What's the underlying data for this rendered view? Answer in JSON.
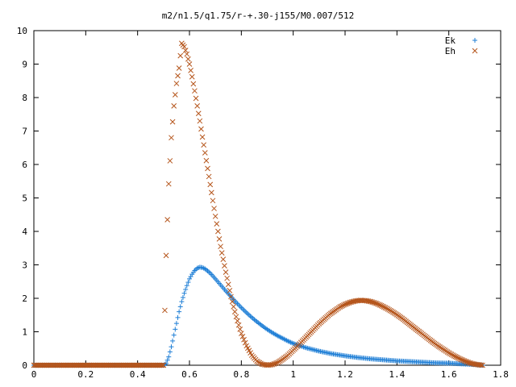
{
  "chart_data": {
    "type": "scatter",
    "title": "m2/n1.5/q1.75/r-+.30-j155/M0.007/512",
    "xlabel": "",
    "ylabel": "",
    "xlim": [
      0,
      1.8
    ],
    "ylim": [
      0,
      10
    ],
    "x_ticks": [
      0,
      0.2,
      0.4,
      0.6,
      0.8,
      1,
      1.2,
      1.4,
      1.6,
      1.8
    ],
    "x_tick_labels": [
      "0",
      "0.2",
      "0.4",
      "0.6",
      "0.8",
      "1",
      "1.2",
      "1.4",
      "1.6",
      "1.8"
    ],
    "y_ticks": [
      0,
      1,
      2,
      3,
      4,
      5,
      6,
      7,
      8,
      9,
      10
    ],
    "y_tick_labels": [
      "0",
      "1",
      "2",
      "3",
      "4",
      "5",
      "6",
      "7",
      "8",
      "9",
      "10"
    ],
    "grid": false,
    "legend": {
      "placement": "top-right"
    },
    "series": [
      {
        "name": "Ek",
        "marker": "plus",
        "color": "#1f7fd6",
        "x": [
          0.0,
          0.05,
          0.1,
          0.15,
          0.2,
          0.25,
          0.3,
          0.35,
          0.4,
          0.45,
          0.5,
          0.51,
          0.52,
          0.53,
          0.54,
          0.55,
          0.56,
          0.57,
          0.58,
          0.59,
          0.6,
          0.61,
          0.62,
          0.63,
          0.64,
          0.65,
          0.66,
          0.67,
          0.68,
          0.69,
          0.7,
          0.72,
          0.74,
          0.76,
          0.78,
          0.8,
          0.82,
          0.84,
          0.86,
          0.88,
          0.9,
          0.92,
          0.94,
          0.96,
          0.98,
          1.0,
          1.05,
          1.1,
          1.15,
          1.2,
          1.25,
          1.3,
          1.35,
          1.4,
          1.45,
          1.5,
          1.55,
          1.6,
          1.65,
          1.7,
          1.73
        ],
        "y": [
          0,
          0,
          0,
          0,
          0,
          0,
          0,
          0,
          0,
          0,
          0,
          0.05,
          0.25,
          0.55,
          0.9,
          1.25,
          1.6,
          1.9,
          2.15,
          2.38,
          2.58,
          2.72,
          2.83,
          2.9,
          2.93,
          2.92,
          2.88,
          2.82,
          2.75,
          2.67,
          2.58,
          2.4,
          2.22,
          2.05,
          1.88,
          1.72,
          1.57,
          1.43,
          1.3,
          1.18,
          1.07,
          0.97,
          0.88,
          0.8,
          0.72,
          0.65,
          0.52,
          0.42,
          0.34,
          0.28,
          0.23,
          0.19,
          0.16,
          0.13,
          0.11,
          0.09,
          0.07,
          0.06,
          0.04,
          0.02,
          0.0
        ]
      },
      {
        "name": "Eh",
        "marker": "cross",
        "color": "#b5551b",
        "x": [
          0.0,
          0.05,
          0.1,
          0.15,
          0.2,
          0.25,
          0.3,
          0.35,
          0.4,
          0.45,
          0.5,
          0.51,
          0.52,
          0.53,
          0.54,
          0.55,
          0.56,
          0.57,
          0.58,
          0.59,
          0.6,
          0.61,
          0.62,
          0.63,
          0.64,
          0.65,
          0.66,
          0.67,
          0.68,
          0.69,
          0.7,
          0.72,
          0.74,
          0.76,
          0.78,
          0.8,
          0.82,
          0.84,
          0.86,
          0.88,
          0.9,
          0.92,
          0.94,
          0.96,
          0.98,
          1.0,
          1.02,
          1.04,
          1.06,
          1.08,
          1.1,
          1.12,
          1.14,
          1.16,
          1.18,
          1.2,
          1.22,
          1.24,
          1.26,
          1.28,
          1.3,
          1.32,
          1.34,
          1.36,
          1.38,
          1.4,
          1.42,
          1.44,
          1.46,
          1.48,
          1.5,
          1.52,
          1.54,
          1.56,
          1.58,
          1.6,
          1.62,
          1.64,
          1.66,
          1.68,
          1.7,
          1.72,
          1.73
        ],
        "y": [
          0,
          0,
          0,
          0,
          0,
          0,
          0,
          0,
          0,
          0,
          0,
          3.28,
          5.42,
          6.8,
          7.75,
          8.42,
          8.88,
          9.62,
          9.52,
          9.3,
          9.0,
          8.62,
          8.2,
          7.75,
          7.3,
          6.82,
          6.35,
          5.88,
          5.4,
          4.92,
          4.45,
          3.55,
          2.78,
          2.05,
          1.45,
          0.95,
          0.58,
          0.3,
          0.12,
          0.03,
          0.0,
          0.02,
          0.08,
          0.18,
          0.3,
          0.45,
          0.6,
          0.76,
          0.92,
          1.08,
          1.24,
          1.38,
          1.52,
          1.63,
          1.74,
          1.82,
          1.88,
          1.92,
          1.94,
          1.93,
          1.9,
          1.85,
          1.78,
          1.7,
          1.61,
          1.51,
          1.4,
          1.28,
          1.16,
          1.04,
          0.92,
          0.8,
          0.68,
          0.57,
          0.47,
          0.37,
          0.28,
          0.2,
          0.13,
          0.07,
          0.03,
          0.01,
          0.0
        ]
      }
    ]
  }
}
